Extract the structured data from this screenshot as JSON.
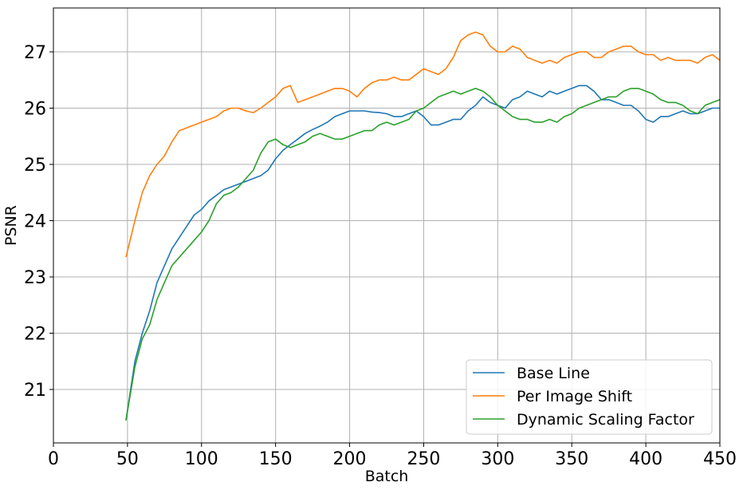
{
  "chart_data": {
    "type": "line",
    "title": "",
    "xlabel": "Batch",
    "ylabel": "PSNR",
    "xlim": [
      0,
      450
    ],
    "ylim": [
      20.05,
      27.78
    ],
    "xticks": [
      0,
      50,
      100,
      150,
      200,
      250,
      300,
      350,
      400,
      450
    ],
    "yticks": [
      21,
      22,
      23,
      24,
      25,
      26,
      27
    ],
    "grid": true,
    "legend_position": "lower-right",
    "x": [
      49,
      55,
      60,
      65,
      70,
      75,
      80,
      85,
      90,
      95,
      100,
      105,
      110,
      115,
      120,
      125,
      130,
      135,
      140,
      145,
      150,
      155,
      160,
      165,
      170,
      175,
      180,
      185,
      190,
      195,
      200,
      205,
      210,
      215,
      220,
      225,
      230,
      235,
      240,
      245,
      250,
      255,
      260,
      265,
      270,
      275,
      280,
      285,
      290,
      295,
      300,
      305,
      310,
      315,
      320,
      325,
      330,
      335,
      340,
      345,
      350,
      355,
      360,
      365,
      370,
      375,
      380,
      385,
      390,
      395,
      400,
      405,
      410,
      415,
      420,
      425,
      430,
      435,
      440,
      445,
      450
    ],
    "series": [
      {
        "name": "Base Line",
        "color": "#1f77b4",
        "values": [
          20.45,
          21.5,
          22.0,
          22.4,
          22.9,
          23.2,
          23.5,
          23.7,
          23.9,
          24.1,
          24.2,
          24.35,
          24.45,
          24.55,
          24.6,
          24.65,
          24.7,
          24.75,
          24.8,
          24.9,
          25.1,
          25.25,
          25.35,
          25.45,
          25.55,
          25.62,
          25.68,
          25.75,
          25.85,
          25.9,
          25.95,
          25.95,
          25.95,
          25.93,
          25.92,
          25.9,
          25.85,
          25.85,
          25.9,
          25.95,
          25.85,
          25.7,
          25.7,
          25.75,
          25.8,
          25.8,
          25.95,
          26.05,
          26.2,
          26.1,
          26.05,
          26.0,
          26.15,
          26.2,
          26.3,
          26.25,
          26.2,
          26.3,
          26.25,
          26.3,
          26.35,
          26.4,
          26.4,
          26.3,
          26.15,
          26.15,
          26.1,
          26.05,
          26.05,
          25.95,
          25.8,
          25.75,
          25.85,
          25.85,
          25.9,
          25.95,
          25.9,
          25.9,
          25.95,
          26.0,
          26.0
        ]
      },
      {
        "name": "Per Image Shift",
        "color": "#ff7f0e",
        "values": [
          23.35,
          24.0,
          24.5,
          24.8,
          25.0,
          25.15,
          25.4,
          25.6,
          25.65,
          25.7,
          25.75,
          25.8,
          25.85,
          25.95,
          26.0,
          26.0,
          25.95,
          25.92,
          26.0,
          26.1,
          26.2,
          26.35,
          26.4,
          26.1,
          26.15,
          26.2,
          26.25,
          26.3,
          26.35,
          26.35,
          26.3,
          26.2,
          26.35,
          26.45,
          26.5,
          26.5,
          26.55,
          26.5,
          26.5,
          26.6,
          26.7,
          26.65,
          26.6,
          26.7,
          26.9,
          27.2,
          27.3,
          27.35,
          27.3,
          27.1,
          27.0,
          27.0,
          27.1,
          27.05,
          26.9,
          26.85,
          26.8,
          26.85,
          26.8,
          26.9,
          26.95,
          27.0,
          27.0,
          26.9,
          26.9,
          27.0,
          27.05,
          27.1,
          27.1,
          27.0,
          26.95,
          26.95,
          26.85,
          26.9,
          26.85,
          26.85,
          26.85,
          26.8,
          26.9,
          26.95,
          26.85
        ]
      },
      {
        "name": "Dynamic Scaling Factor",
        "color": "#2ca02c",
        "values": [
          20.45,
          21.4,
          21.9,
          22.15,
          22.6,
          22.9,
          23.2,
          23.35,
          23.5,
          23.65,
          23.8,
          24.0,
          24.3,
          24.45,
          24.5,
          24.6,
          24.75,
          24.9,
          25.2,
          25.4,
          25.45,
          25.35,
          25.3,
          25.35,
          25.4,
          25.5,
          25.55,
          25.5,
          25.45,
          25.45,
          25.5,
          25.55,
          25.6,
          25.6,
          25.7,
          25.75,
          25.7,
          25.75,
          25.8,
          25.95,
          26.0,
          26.1,
          26.2,
          26.25,
          26.3,
          26.25,
          26.3,
          26.35,
          26.3,
          26.2,
          26.05,
          25.95,
          25.85,
          25.8,
          25.8,
          25.75,
          25.75,
          25.8,
          25.75,
          25.85,
          25.9,
          26.0,
          26.05,
          26.1,
          26.15,
          26.2,
          26.2,
          26.3,
          26.35,
          26.35,
          26.3,
          26.25,
          26.15,
          26.1,
          26.1,
          26.05,
          25.95,
          25.9,
          26.05,
          26.1,
          26.15
        ]
      }
    ]
  }
}
